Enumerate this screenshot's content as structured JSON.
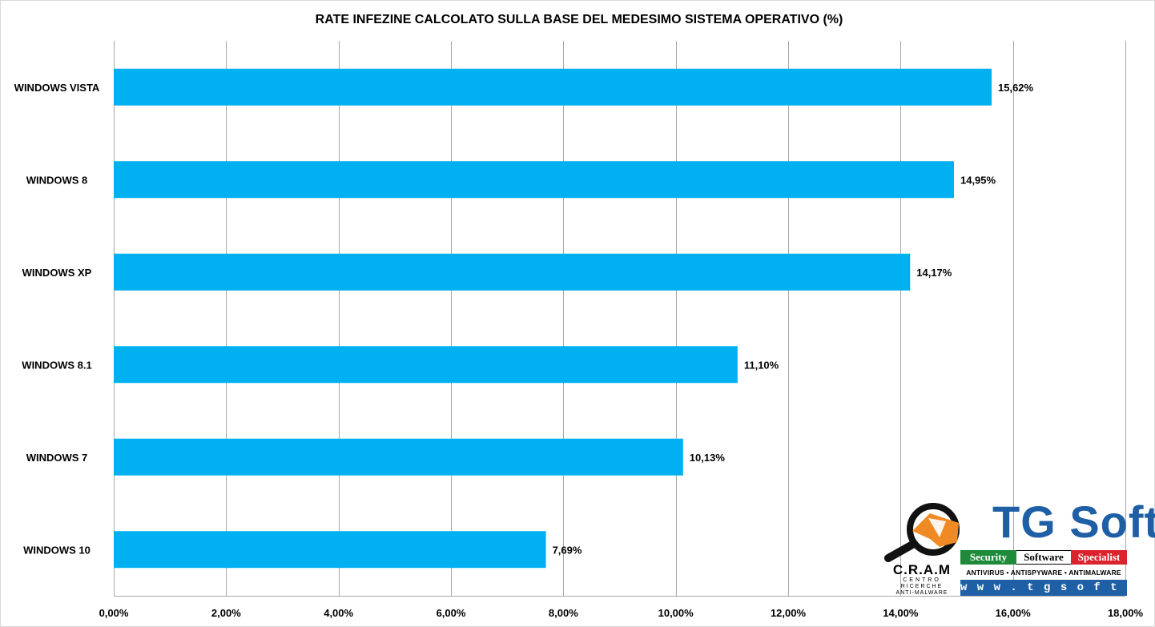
{
  "chart_data": {
    "type": "bar",
    "orientation": "horizontal",
    "title": "RATE INFEZINE CALCOLATO SULLA BASE DEL MEDESIMO SISTEMA OPERATIVO (%)",
    "categories": [
      "WINDOWS VISTA",
      "WINDOWS 8",
      "WINDOWS XP",
      "WINDOWS 8.1",
      "WINDOWS 7",
      "WINDOWS 10"
    ],
    "values": [
      15.62,
      14.95,
      14.17,
      11.1,
      10.13,
      7.69
    ],
    "value_labels": [
      "15,62%",
      "14,95%",
      "14,17%",
      "11,10%",
      "10,13%",
      "7,69%"
    ],
    "xlim": [
      0,
      18
    ],
    "xticks": [
      0,
      2,
      4,
      6,
      8,
      10,
      12,
      14,
      16,
      18
    ],
    "xtick_labels": [
      "0,00%",
      "2,00%",
      "4,00%",
      "6,00%",
      "8,00%",
      "10,00%",
      "12,00%",
      "14,00%",
      "16,00%",
      "18,00%"
    ],
    "xlabel": "",
    "ylabel": "",
    "grid": "vertical",
    "legend": "none",
    "bar_color": "#00b0f0",
    "grid_color": "#a6a6a6"
  },
  "logo": {
    "cram_text": "C.R.A.M",
    "cram_sub_1": "CENTRO",
    "cram_sub_2": "RICERCHE",
    "cram_sub_3": "ANTI-MALWARE",
    "brand": "TG Soft",
    "tag_security": "Security",
    "tag_software": "Software",
    "tag_specialist": "Specialist",
    "products": "ANTIVIRUS • ANTISPYWARE • ANTIMALWARE",
    "url": "w w w . t g s o f t . i t"
  }
}
